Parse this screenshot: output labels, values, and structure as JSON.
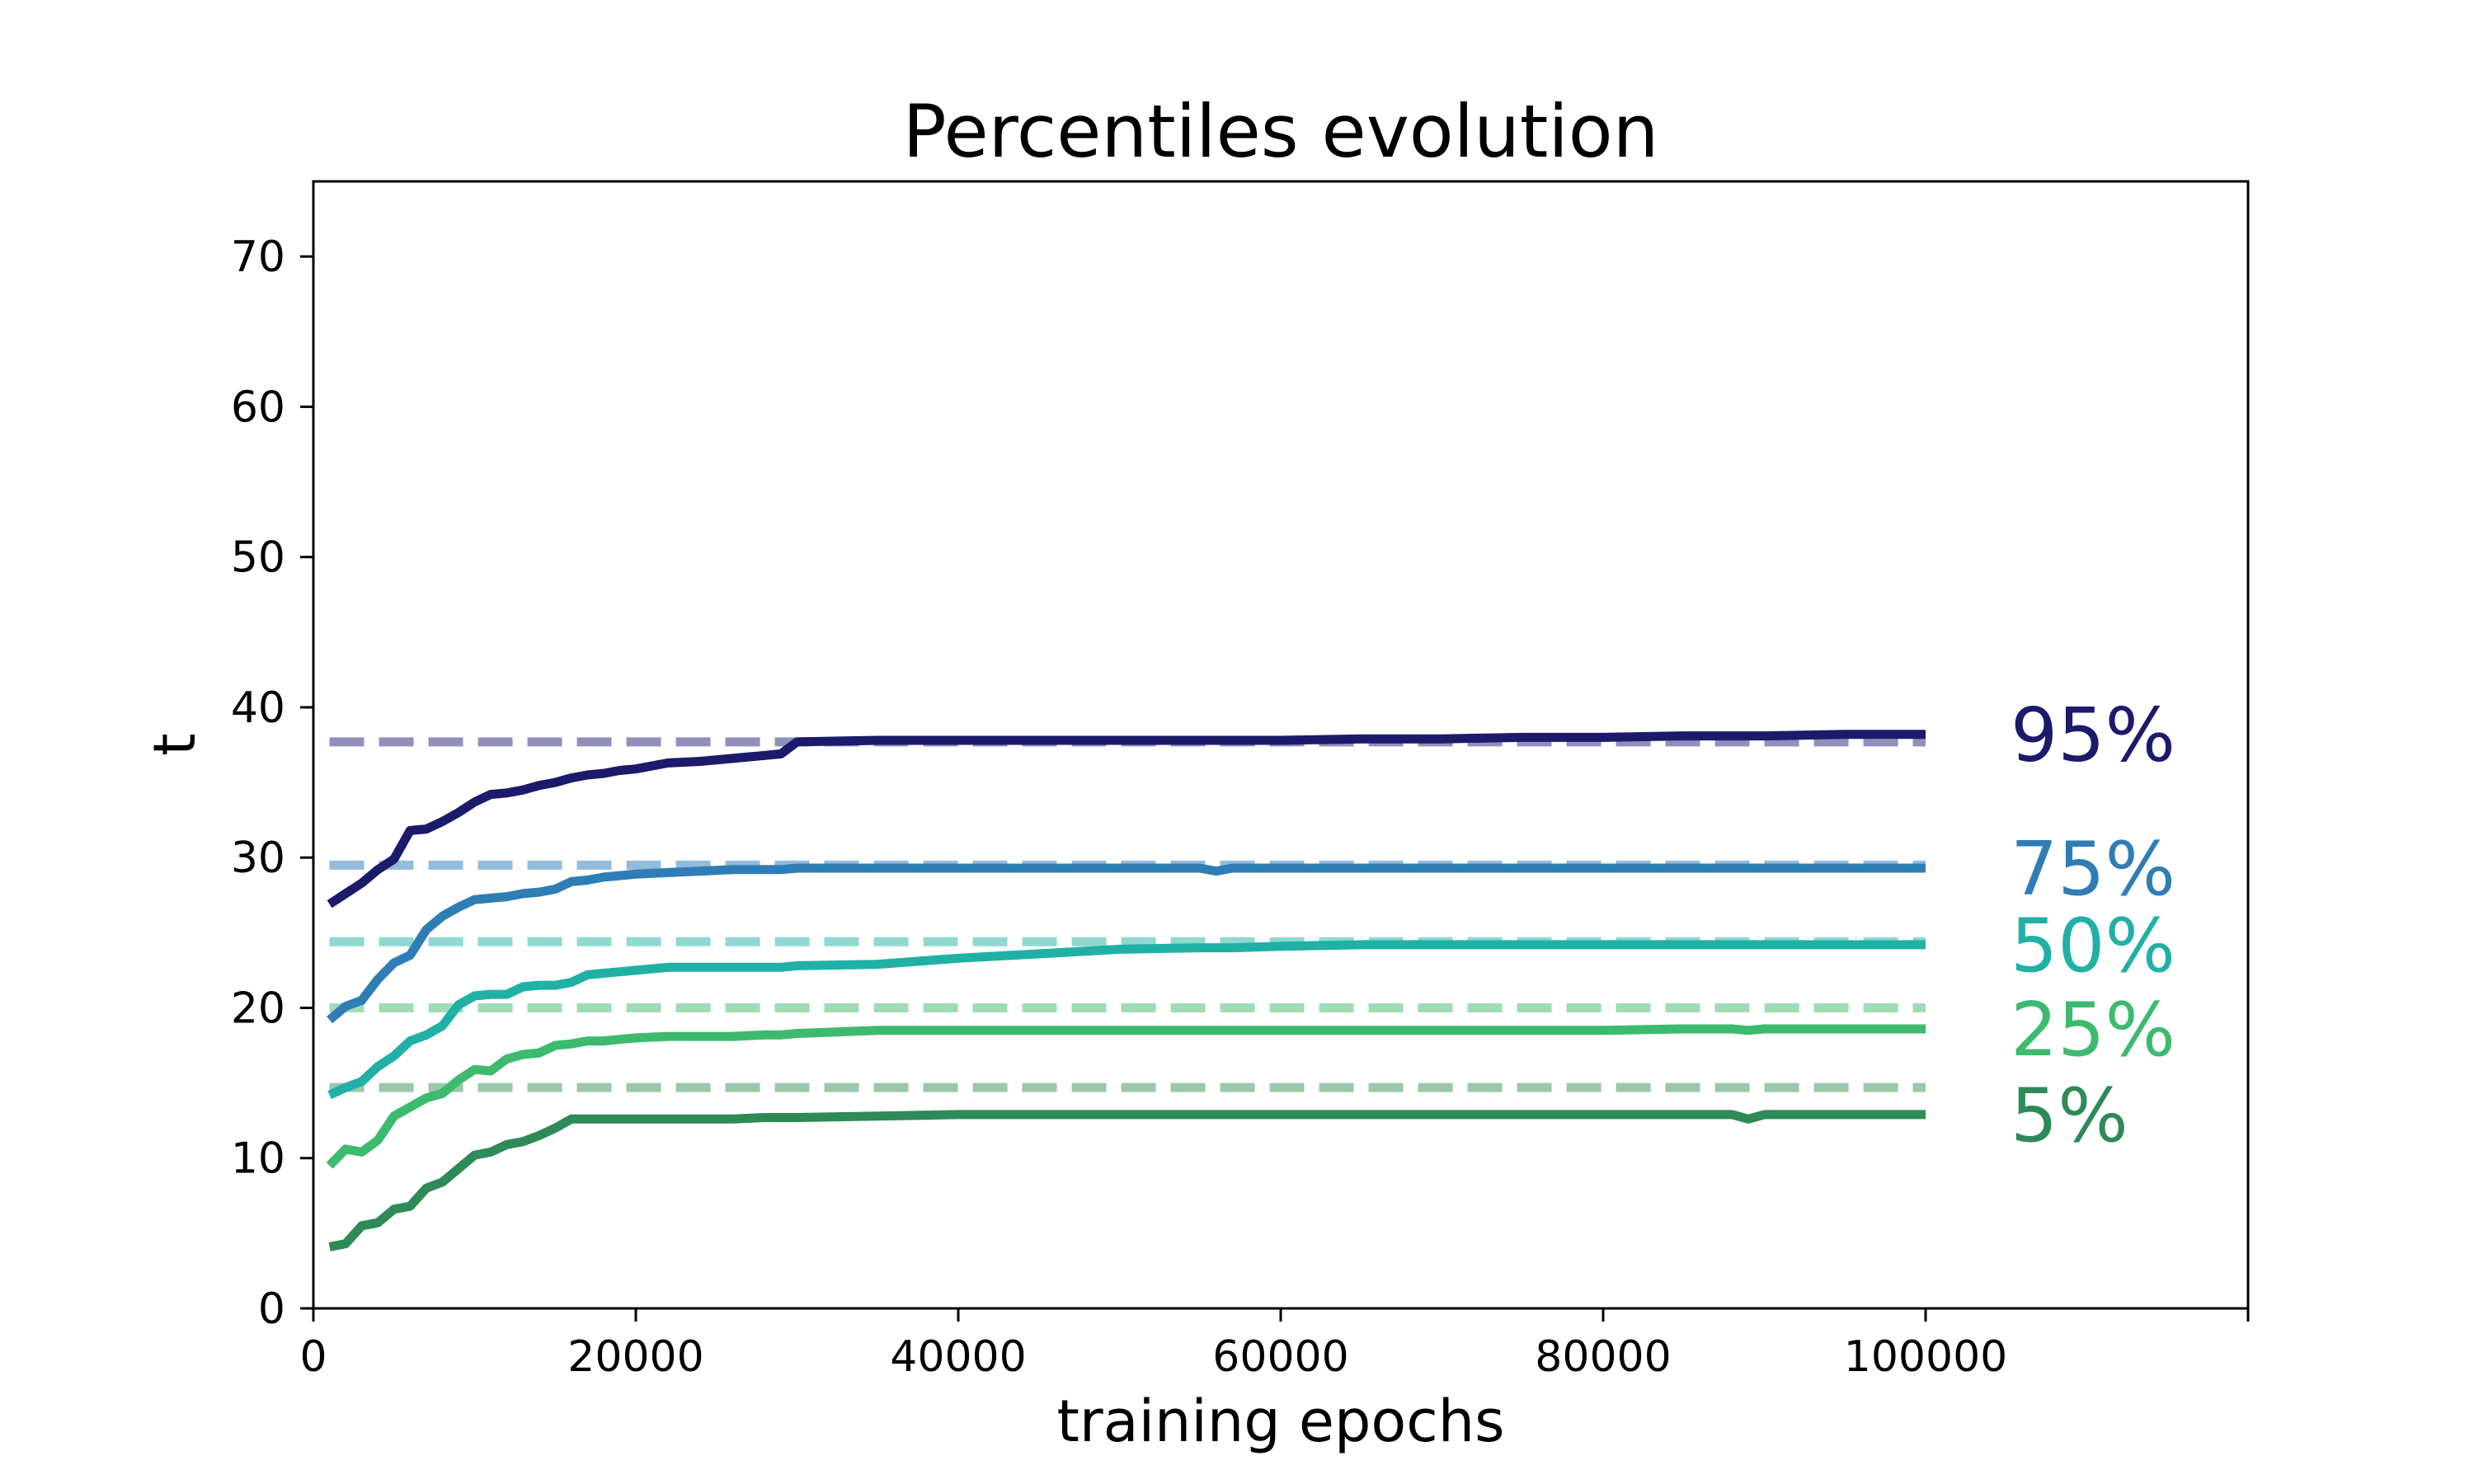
{
  "chart_data": {
    "type": "line",
    "title": "Percentiles evolution",
    "xlabel": "training epochs",
    "ylabel": "t",
    "xlim": [
      0,
      120000
    ],
    "ylim": [
      0,
      75
    ],
    "xticks": [
      0,
      20000,
      40000,
      60000,
      80000,
      100000
    ],
    "yticks": [
      0,
      10,
      20,
      30,
      40,
      50,
      60,
      70
    ],
    "grid": false,
    "legend": "none",
    "x": [
      1000,
      2000,
      3000,
      4000,
      5000,
      6000,
      7000,
      8000,
      9000,
      10000,
      11000,
      12000,
      13000,
      14000,
      15000,
      16000,
      17000,
      18000,
      19000,
      20000,
      22000,
      24000,
      26000,
      28000,
      29000,
      30000,
      35000,
      40000,
      45000,
      50000,
      55000,
      56000,
      57000,
      60000,
      65000,
      70000,
      75000,
      80000,
      85000,
      88000,
      89000,
      90000,
      95000,
      100000
    ],
    "series": [
      {
        "name": "95%",
        "color": "#1b1a6b",
        "reference": 37.7,
        "reference_color": "#9190bd",
        "values": [
          26.9,
          27.6,
          28.3,
          29.2,
          29.9,
          31.8,
          31.9,
          32.4,
          33.0,
          33.7,
          34.2,
          34.3,
          34.5,
          34.8,
          35.0,
          35.3,
          35.5,
          35.6,
          35.8,
          35.9,
          36.3,
          36.4,
          36.6,
          36.8,
          36.9,
          37.7,
          37.8,
          37.8,
          37.8,
          37.8,
          37.8,
          37.8,
          37.8,
          37.8,
          37.9,
          37.9,
          38.0,
          38.0,
          38.1,
          38.1,
          38.1,
          38.1,
          38.2,
          38.2
        ]
      },
      {
        "name": "75%",
        "color": "#2f7db5",
        "reference": 29.5,
        "reference_color": "#92bcdc",
        "values": [
          19.2,
          20.1,
          20.5,
          21.9,
          23.0,
          23.5,
          25.2,
          26.1,
          26.7,
          27.2,
          27.3,
          27.4,
          27.6,
          27.7,
          27.9,
          28.4,
          28.5,
          28.7,
          28.8,
          28.9,
          29.0,
          29.1,
          29.2,
          29.2,
          29.2,
          29.3,
          29.3,
          29.3,
          29.3,
          29.3,
          29.3,
          29.1,
          29.3,
          29.3,
          29.3,
          29.3,
          29.3,
          29.3,
          29.3,
          29.3,
          29.3,
          29.3,
          29.3,
          29.3
        ]
      },
      {
        "name": "50%",
        "color": "#21b0a6",
        "reference": 24.4,
        "reference_color": "#8fd9d2",
        "values": [
          14.2,
          14.7,
          15.1,
          16.1,
          16.8,
          17.8,
          18.2,
          18.8,
          20.2,
          20.8,
          20.9,
          20.9,
          21.4,
          21.5,
          21.5,
          21.7,
          22.2,
          22.3,
          22.4,
          22.5,
          22.7,
          22.7,
          22.7,
          22.7,
          22.7,
          22.8,
          22.9,
          23.3,
          23.6,
          23.9,
          24.0,
          24.0,
          24.0,
          24.1,
          24.2,
          24.2,
          24.2,
          24.2,
          24.2,
          24.2,
          24.2,
          24.2,
          24.2,
          24.2
        ]
      },
      {
        "name": "25%",
        "color": "#3dba6e",
        "reference": 20.0,
        "reference_color": "#9edcb5",
        "values": [
          9.5,
          10.6,
          10.4,
          11.2,
          12.8,
          13.4,
          14.0,
          14.3,
          15.2,
          15.9,
          15.8,
          16.6,
          16.9,
          17.0,
          17.5,
          17.6,
          17.8,
          17.8,
          17.9,
          18.0,
          18.1,
          18.1,
          18.1,
          18.2,
          18.2,
          18.3,
          18.5,
          18.5,
          18.5,
          18.5,
          18.5,
          18.5,
          18.5,
          18.5,
          18.5,
          18.5,
          18.5,
          18.5,
          18.6,
          18.6,
          18.5,
          18.6,
          18.6,
          18.6
        ]
      },
      {
        "name": "5%",
        "color": "#2e8a57",
        "reference": 14.7,
        "reference_color": "#9bc7aa",
        "values": [
          4.1,
          4.3,
          5.5,
          5.7,
          6.6,
          6.8,
          8.0,
          8.4,
          9.3,
          10.2,
          10.4,
          10.9,
          11.1,
          11.5,
          12.0,
          12.6,
          12.6,
          12.6,
          12.6,
          12.6,
          12.6,
          12.6,
          12.6,
          12.7,
          12.7,
          12.7,
          12.8,
          12.9,
          12.9,
          12.9,
          12.9,
          12.9,
          12.9,
          12.9,
          12.9,
          12.9,
          12.9,
          12.9,
          12.9,
          12.9,
          12.6,
          12.9,
          12.9,
          12.9
        ]
      }
    ]
  }
}
